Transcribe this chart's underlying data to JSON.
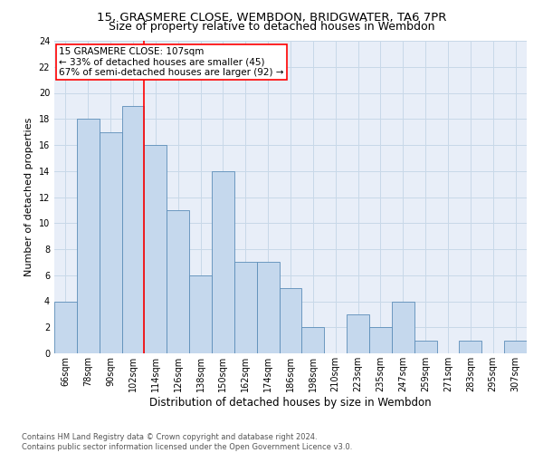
{
  "title_line1": "15, GRASMERE CLOSE, WEMBDON, BRIDGWATER, TA6 7PR",
  "title_line2": "Size of property relative to detached houses in Wembdon",
  "xlabel": "Distribution of detached houses by size in Wembdon",
  "ylabel": "Number of detached properties",
  "annotation_line1": "15 GRASMERE CLOSE: 107sqm",
  "annotation_line2": "← 33% of detached houses are smaller (45)",
  "annotation_line3": "67% of semi-detached houses are larger (92) →",
  "bin_labels": [
    "66sqm",
    "78sqm",
    "90sqm",
    "102sqm",
    "114sqm",
    "126sqm",
    "138sqm",
    "150sqm",
    "162sqm",
    "174sqm",
    "186sqm",
    "198sqm",
    "210sqm",
    "223sqm",
    "235sqm",
    "247sqm",
    "259sqm",
    "271sqm",
    "283sqm",
    "295sqm",
    "307sqm"
  ],
  "bar_values": [
    4,
    18,
    17,
    19,
    16,
    11,
    6,
    14,
    7,
    7,
    5,
    2,
    0,
    3,
    2,
    4,
    1,
    0,
    1,
    0,
    1
  ],
  "bar_color": "#c5d8ed",
  "bar_edgecolor": "#5b8db8",
  "reference_line_x": 3.5,
  "reference_line_color": "red",
  "ylim": [
    0,
    24
  ],
  "yticks": [
    0,
    2,
    4,
    6,
    8,
    10,
    12,
    14,
    16,
    18,
    20,
    22,
    24
  ],
  "grid_color": "#c8d8e8",
  "background_color": "#e8eef8",
  "footer_text": "Contains HM Land Registry data © Crown copyright and database right 2024.\nContains public sector information licensed under the Open Government Licence v3.0.",
  "title1_fontsize": 9.5,
  "title2_fontsize": 9,
  "ylabel_fontsize": 8,
  "xlabel_fontsize": 8.5,
  "tick_fontsize": 7,
  "annot_fontsize": 7.5,
  "footer_fontsize": 6
}
